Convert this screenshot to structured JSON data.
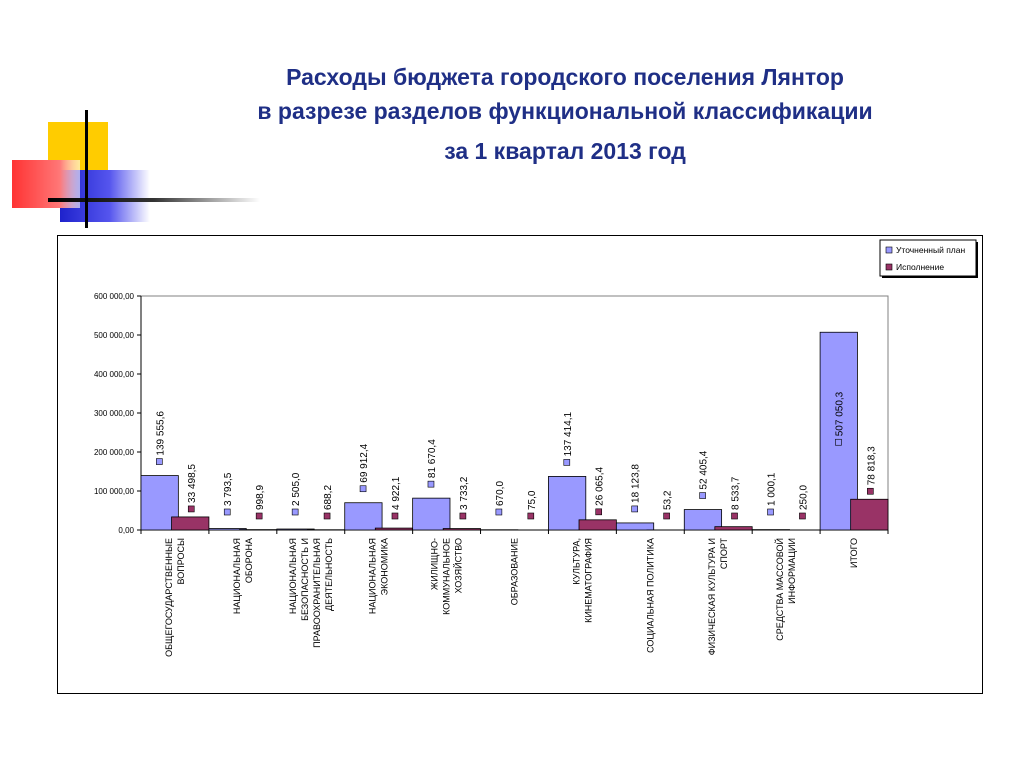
{
  "title": {
    "line1": "Расходы бюджета городского поселения Лянтор",
    "line2": "в разрезе разделов функциональной классификации",
    "line3": "за  1 квартал 2013 год"
  },
  "colors": {
    "title": "#1f2f86",
    "plan": "#9999ff",
    "actual": "#993366"
  },
  "chart_data": {
    "type": "bar",
    "categories": [
      [
        "ОБЩЕГОСУДАРСТВЕННЫЕ",
        "ВОПРОСЫ"
      ],
      [
        "НАЦИОНАЛЬНАЯ",
        "ОБОРОНА"
      ],
      [
        "НАЦИОНАЛЬНАЯ",
        "БЕЗОПАСНОСТЬ И",
        "ПРАВООХРАНИТЕЛЬНАЯ",
        "ДЕЯТЕЛЬНОСТЬ"
      ],
      [
        "НАЦИОНАЛЬНАЯ",
        "ЭКОНОМИКА"
      ],
      [
        "ЖИЛИЩНО-",
        "КОММУНАЛЬНОЕ",
        "ХОЗЯЙСТВО"
      ],
      [
        "ОБРАЗОВАНИЕ"
      ],
      [
        "КУЛЬТУРА,",
        "КИНЕМАТОГРАФИЯ"
      ],
      [
        "СОЦИАЛЬНАЯ ПОЛИТИКА"
      ],
      [
        "ФИЗИЧЕСКАЯ КУЛЬТУРА И",
        "СПОРТ"
      ],
      [
        "СРЕДСТВА МАССОВОЙ",
        "ИНФОРМАЦИИ"
      ],
      [
        "ИТОГО"
      ]
    ],
    "series": [
      {
        "name": "Уточненный план",
        "values": [
          139555.6,
          3793.5,
          2505.0,
          69912.4,
          81670.4,
          670.0,
          137414.1,
          18123.8,
          52405.4,
          1000.1,
          507050.3
        ],
        "labels": [
          "139 555,6",
          "3 793,5",
          "2 505,0",
          "69 912,4",
          "81 670,4",
          "670,0",
          "137 414,1",
          "18 123,8",
          "52 405,4",
          "1 000,1",
          "507 050,3"
        ]
      },
      {
        "name": "Исполнение",
        "values": [
          33498.5,
          998.9,
          688.2,
          4922.1,
          3733.2,
          75.0,
          26065.4,
          53.2,
          8533.7,
          250.0,
          78818.3
        ],
        "labels": [
          "33 498,5",
          "998,9",
          "688,2",
          "4 922,1",
          "3 733,2",
          "75,0",
          "26 065,4",
          "53,2",
          "8 533,7",
          "250,0",
          "78 818,3"
        ]
      }
    ],
    "ylim": [
      0,
      600000
    ],
    "yticks": [
      "0,00",
      "100 000,00",
      "200 000,00",
      "300 000,00",
      "400 000,00",
      "500 000,00",
      "600 000,00"
    ],
    "legend_position": "top-right",
    "grid": false
  }
}
